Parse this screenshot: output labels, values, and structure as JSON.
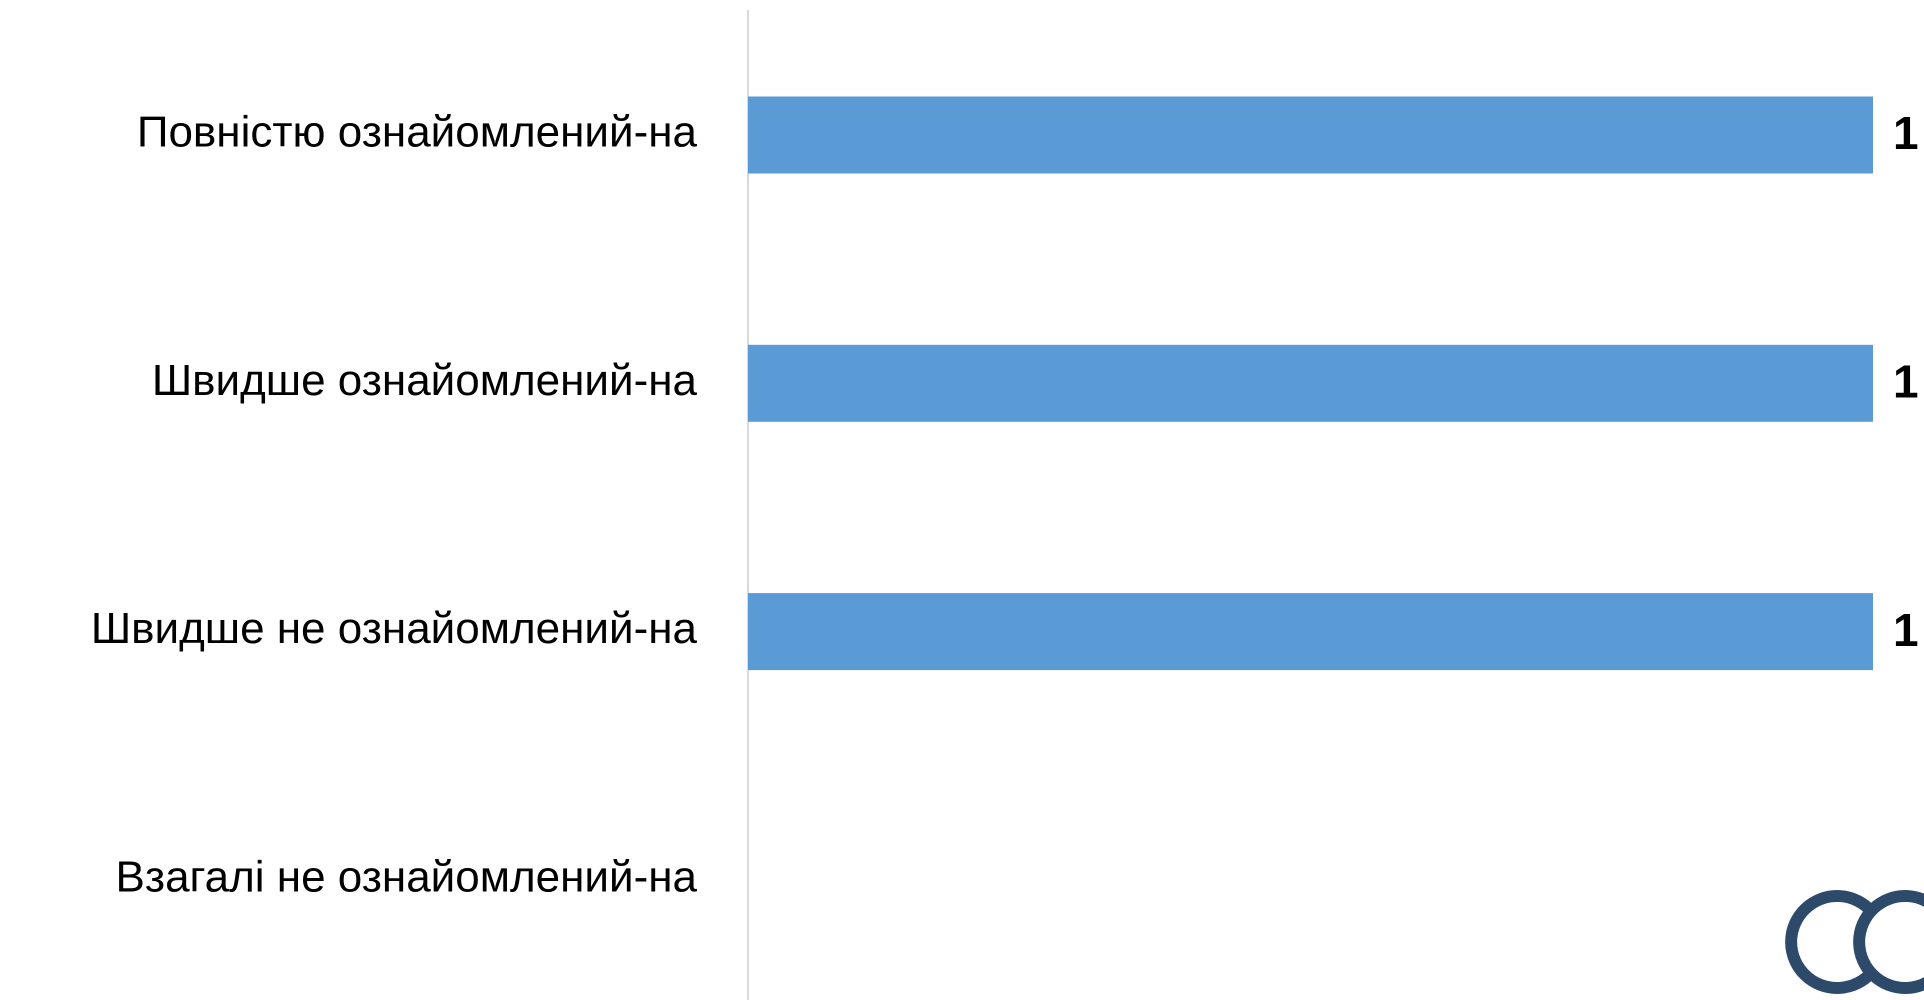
{
  "chart_data": {
    "type": "bar",
    "orientation": "horizontal",
    "categories": [
      "Повністю ознайомлений-на",
      "Швидше ознайомлений-на",
      "Швидше не ознайомлений-на",
      "Взагалі не ознайомлений-на"
    ],
    "values": [
      1,
      1,
      1,
      null
    ],
    "color": "#5b9bd5",
    "xlim": [
      0,
      1
    ]
  }
}
